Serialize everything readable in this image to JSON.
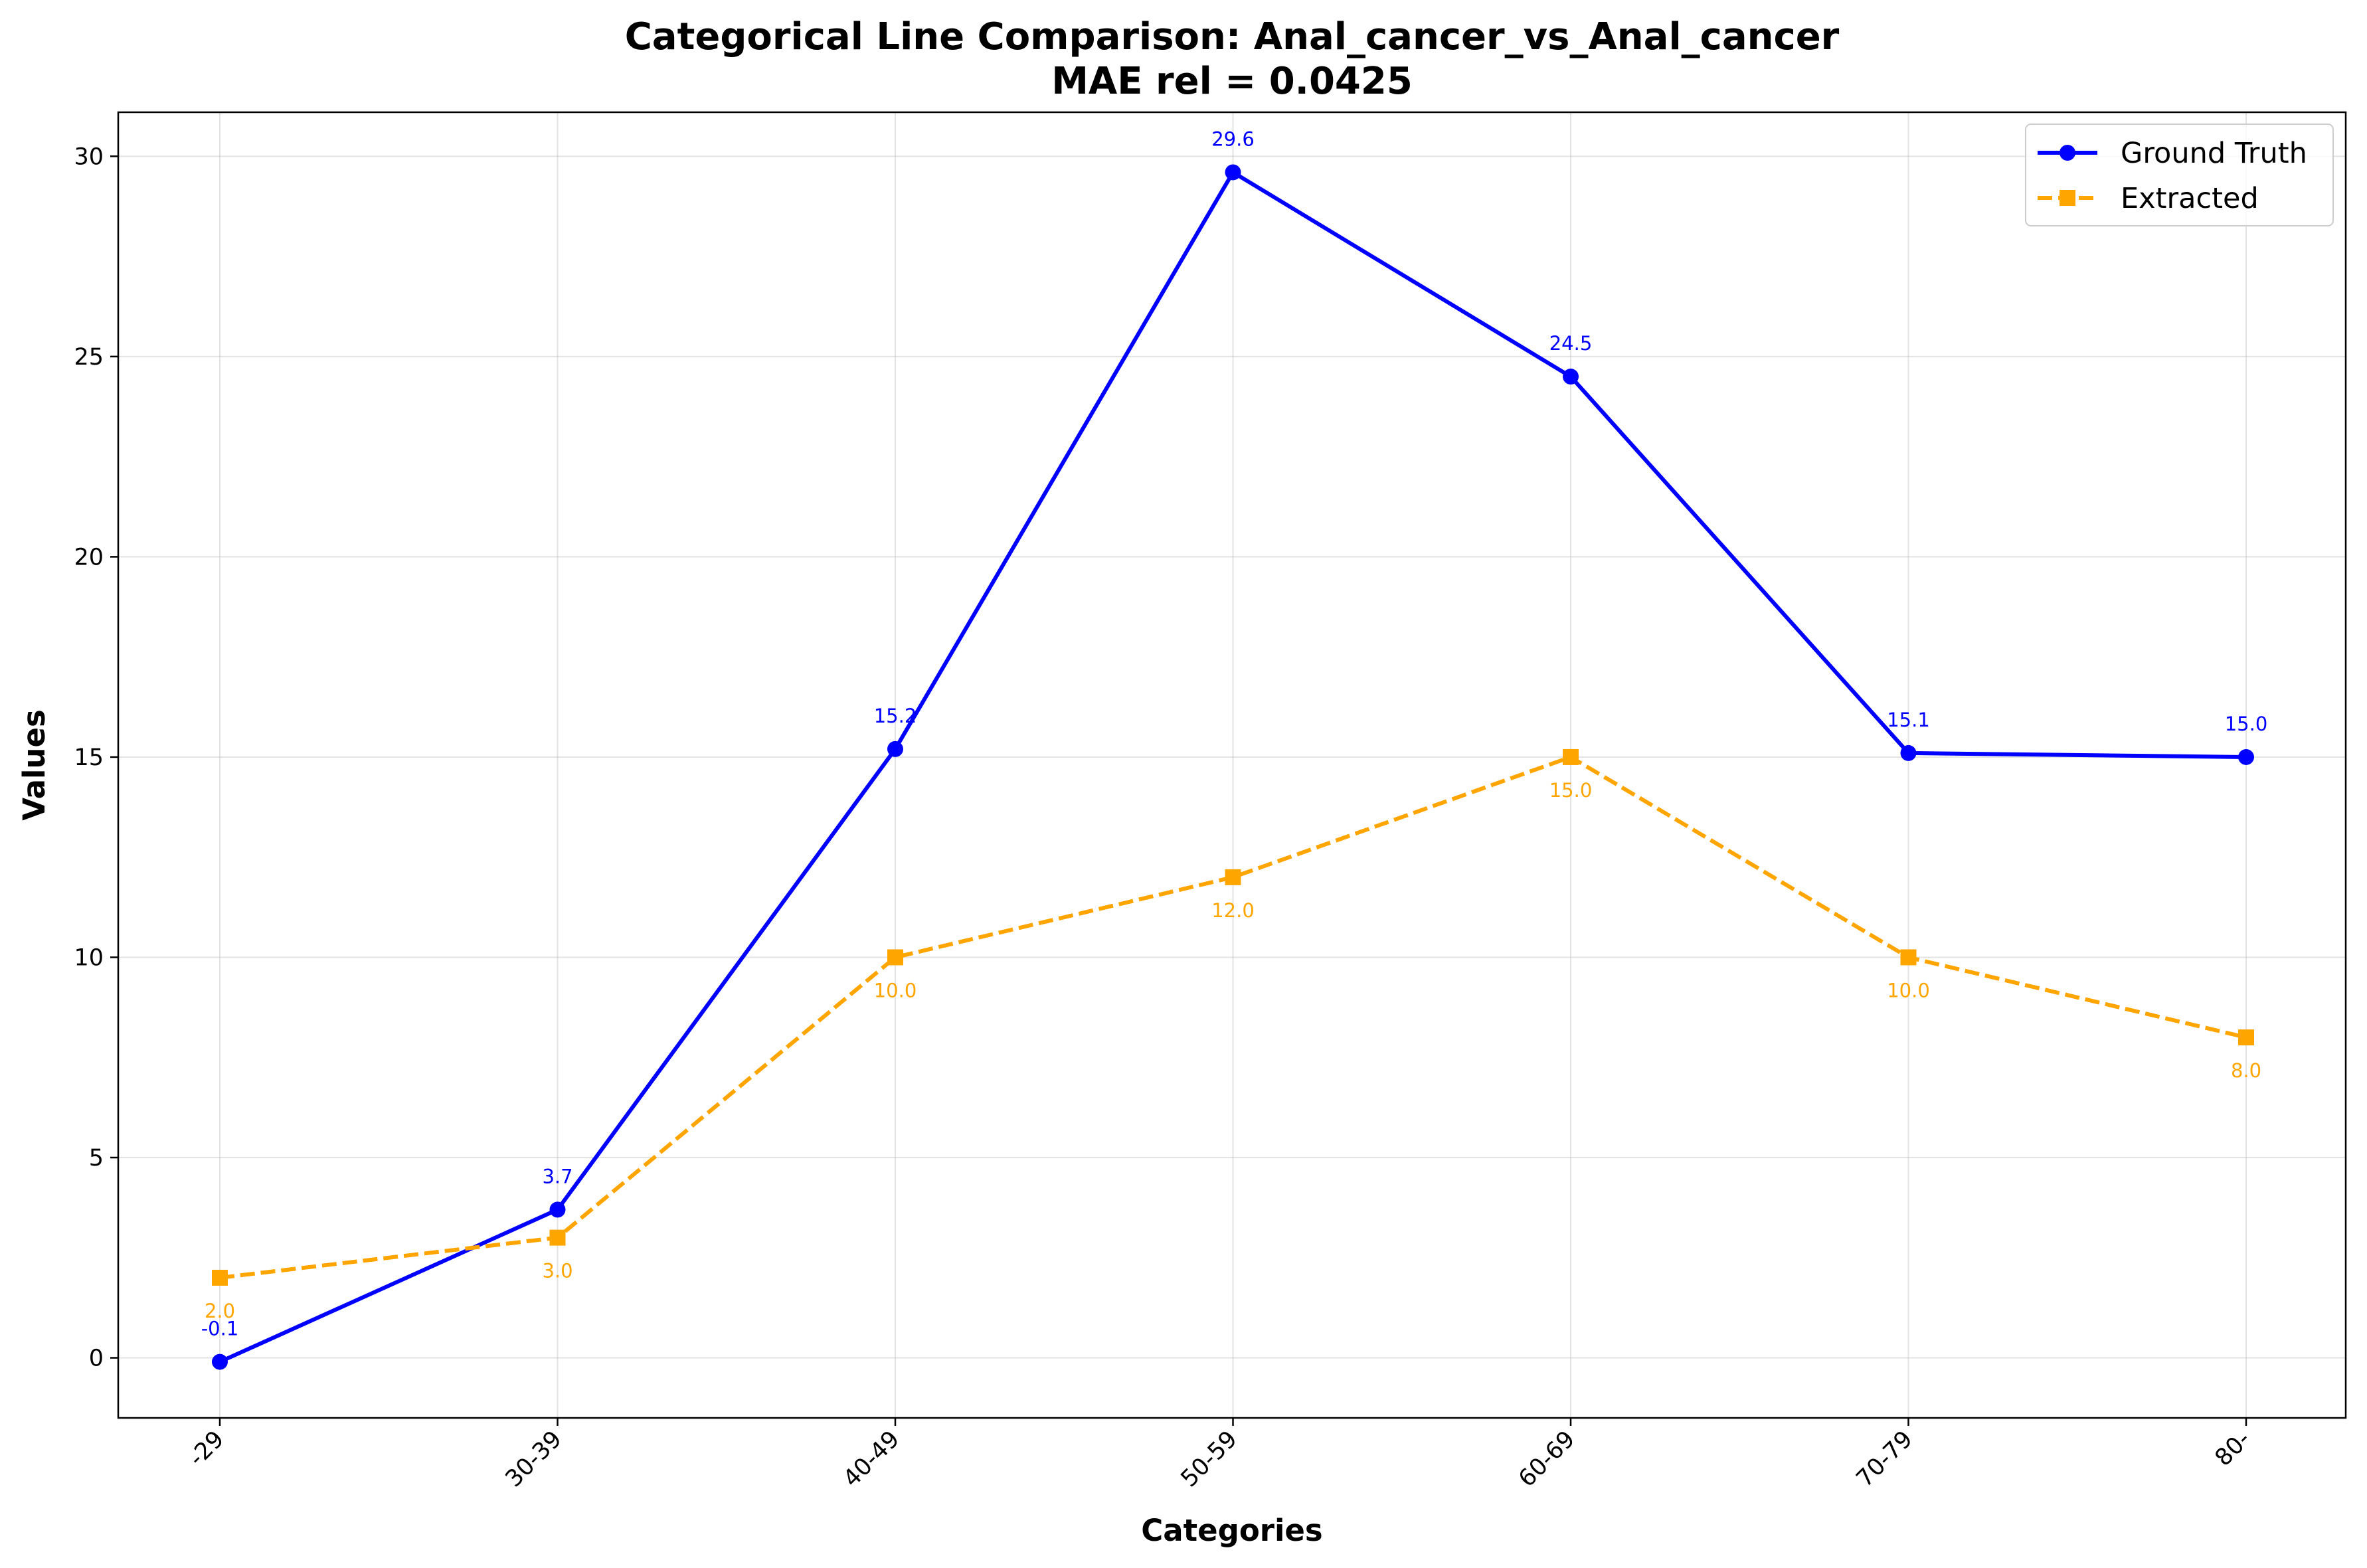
{
  "chart_data": {
    "type": "line",
    "title": "Categorical Line Comparison: Anal_cancer_vs_Anal_cancer",
    "subtitle": "MAE rel = 0.0425",
    "xlabel": "Categories",
    "ylabel": "Values",
    "categories": [
      "-29",
      "30-39",
      "40-49",
      "50-59",
      "60-69",
      "70-79",
      "80-"
    ],
    "ylim": [
      -1.5,
      31.1
    ],
    "yticks": [
      0,
      5,
      10,
      15,
      20,
      25,
      30
    ],
    "ytick_labels": [
      "0",
      "5",
      "10",
      "15",
      "20",
      "25",
      "30"
    ],
    "grid": true,
    "legend_position": "top-right",
    "series": [
      {
        "name": "Ground Truth",
        "color": "#0000ff",
        "line_style": "solid",
        "marker": "circle",
        "values": [
          -0.1,
          3.7,
          15.2,
          29.6,
          24.5,
          15.1,
          15.0
        ],
        "labels": [
          "-0.1",
          "3.7",
          "15.2",
          "29.6",
          "24.5",
          "15.1",
          "15.0"
        ],
        "label_side": "above"
      },
      {
        "name": "Extracted",
        "color": "#ffa500",
        "line_style": "dashed",
        "marker": "square",
        "values": [
          2.0,
          3.0,
          10.0,
          12.0,
          15.0,
          10.0,
          8.0
        ],
        "labels": [
          "2.0",
          "3.0",
          "10.0",
          "12.0",
          "15.0",
          "10.0",
          "8.0"
        ],
        "label_side": "below"
      }
    ]
  }
}
